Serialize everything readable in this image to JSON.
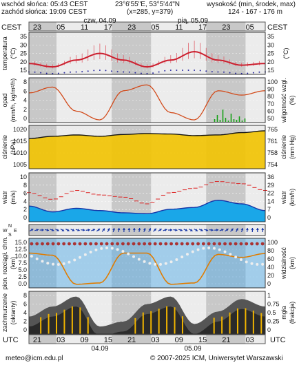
{
  "header": {
    "sunrise": "wschód słońca: 05:43 CEST",
    "sunset": "zachód słońca: 19:09 CEST",
    "coords": "23°6'55\"E, 53°5'44\"N",
    "grid": "(x=285, y=379)",
    "elev_label": "wysokość (min, środek, max)",
    "elev_values": "124 - 167 - 176 m"
  },
  "timeline": {
    "zone_left": "CEST",
    "zone_right": "CEST",
    "day1": "czw, 04.09",
    "day2": "pią, 05.09",
    "top_ticks": [
      "23",
      "05",
      "11",
      "17",
      "23",
      "05",
      "11",
      "17",
      "23",
      "05"
    ],
    "bottom_ticks": [
      "21",
      "03",
      "09",
      "15",
      "21",
      "03",
      "09",
      "15",
      "21",
      "03"
    ],
    "bottom_zone_left": "UTC",
    "bottom_zone_right": "UTC",
    "bottom_day1": "04.09",
    "bottom_day2": "05.09"
  },
  "footer": {
    "email": "meteo@icm.edu.pl",
    "copyright": "© 2007-2025 ICM, Uniwersytet Warszawski"
  },
  "colors": {
    "night": "#c8c8c8",
    "day": "#ececec",
    "temp_line": "#cc1f2e",
    "dew_points": "#2a2aa0",
    "pressure_fill": "#f2c300",
    "wind_fill": "#1aa7e8",
    "wind_dark": "#1535a8",
    "rain_bar": "#16a016",
    "humidity": "#d24a1a",
    "visibility": "#e07c00"
  },
  "chart_data": [
    {
      "type": "line",
      "panel": "temperature",
      "ylabel_left": "temperatura",
      "ylabel_left_unit": "(°C)",
      "ylabel_right_unit": "(°C)",
      "left_ticks": [
        "35",
        "30",
        "25",
        "20",
        "15"
      ],
      "right_ticks": [
        "35",
        "30",
        "25",
        "20",
        "15"
      ],
      "ylim": [
        15,
        35
      ],
      "x_hours": [
        0,
        6,
        12,
        18,
        24,
        30,
        36,
        42,
        48,
        54,
        60
      ],
      "temperature": [
        19,
        17,
        21,
        25,
        21,
        17,
        21,
        26,
        21,
        18,
        19
      ],
      "dew_point": [
        14,
        13,
        14,
        15,
        14,
        13,
        15,
        15,
        14,
        13,
        14
      ]
    },
    {
      "type": "line",
      "panel": "precipitation",
      "ylabel_left": "opad",
      "ylabel_left_unit": "(mm/h, kg/m²/h)",
      "ylabel_right": "wilgotność wzgl.",
      "ylabel_right_unit": "(%)",
      "left_ticks": [
        "8",
        "6",
        "4",
        "2",
        "0"
      ],
      "right_ticks": [
        "100",
        "90",
        "80",
        "70",
        "60",
        "50"
      ],
      "ylim": [
        0,
        8
      ],
      "x_hours": [
        0,
        6,
        12,
        18,
        24,
        30,
        36,
        42,
        48,
        54,
        60
      ],
      "humidity": [
        85,
        93,
        60,
        48,
        88,
        96,
        58,
        48,
        88,
        82,
        88
      ]
    },
    {
      "type": "area",
      "panel": "pressure",
      "ylabel_left": "ciśnienie",
      "ylabel_left_unit": "(hPa)",
      "ylabel_right": "ciśnienie",
      "ylabel_right_unit": "(mm Hg)",
      "left_ticks": [
        "1020",
        "1015",
        "1010",
        "1005"
      ],
      "right_ticks": [
        "765",
        "761",
        "758",
        "754"
      ],
      "ylim": [
        1002,
        1021
      ],
      "x_hours": [
        0,
        6,
        12,
        18,
        24,
        30,
        36,
        42,
        48,
        54,
        60
      ],
      "pressure": [
        1015.2,
        1016.2,
        1016.8,
        1016.2,
        1017.0,
        1017.4,
        1017.2,
        1016.5,
        1016.8,
        1017.8,
        1018.6
      ]
    },
    {
      "type": "area",
      "panel": "wind",
      "ylabel_left": "wiatr",
      "ylabel_left_unit": "(m/s)",
      "ylabel_right": "wiatr",
      "ylabel_right_unit": "(km/h)",
      "left_ticks": [
        "10",
        "8",
        "6",
        "4",
        "2",
        "0"
      ],
      "right_ticks": [
        "36",
        "29",
        "22",
        "14",
        "7",
        "0"
      ],
      "ylim": [
        0,
        10
      ],
      "x_hours": [
        0,
        6,
        12,
        18,
        24,
        30,
        36,
        42,
        48,
        54,
        60
      ],
      "wind": [
        3.5,
        2.2,
        3.0,
        2.5,
        2.0,
        1.8,
        2.8,
        3.2,
        4.8,
        4.0,
        2.5
      ],
      "gusts": [
        6.5,
        5.0,
        7.0,
        6.0,
        5.5,
        4.0,
        6.5,
        7.5,
        9.0,
        8.5,
        7.0
      ]
    },
    {
      "type": "line",
      "panel": "visibility",
      "ylabel_left": "pion. rozciągł. chm.",
      "ylabel_left_unit": "(km)",
      "ylabel_right": "widzialność",
      "ylabel_right_unit": "(km)",
      "left_ticks": [
        "15.0",
        "12.5",
        "10.0",
        "7.5",
        "5.0",
        "2.5",
        "0.0"
      ],
      "right_ticks": [
        "100",
        "80",
        "60",
        "40",
        "20",
        "0"
      ],
      "ylim": [
        0,
        15
      ],
      "x_hours": [
        0,
        6,
        12,
        18,
        24,
        30,
        36,
        42,
        48,
        54,
        60
      ],
      "visibility": [
        75,
        70,
        2,
        5,
        75,
        75,
        2,
        5,
        72,
        65,
        74
      ]
    },
    {
      "type": "area",
      "panel": "clouds",
      "ylabel_left": "zachmurzenie",
      "ylabel_left_unit": "(oktanty)",
      "ylabel_right": "mgła",
      "ylabel_right_unit": "(frakcja)",
      "left_ticks": [
        "8",
        "6",
        "4",
        "2",
        "0"
      ],
      "right_ticks": [
        "1",
        "0.75",
        "0.5",
        "0.25",
        "0"
      ],
      "ylim": [
        0,
        8
      ],
      "x_hours": [
        0,
        6,
        12,
        18,
        24,
        30,
        36,
        42,
        48,
        54,
        60
      ],
      "cloud_cover": [
        3.5,
        5.5,
        7.5,
        1.5,
        2.5,
        6.0,
        7.5,
        2.0,
        4.5,
        7.0,
        5.5
      ]
    }
  ]
}
